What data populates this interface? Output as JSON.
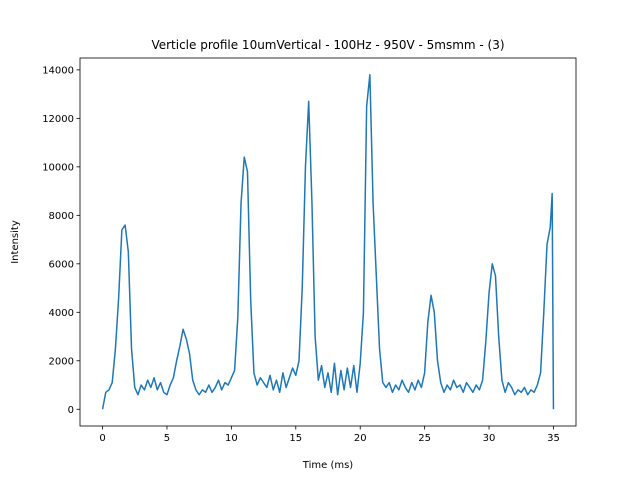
{
  "chart_data": {
    "type": "line",
    "title": "Verticle profile 10umVertical - 100Hz - 950V - 5msmm - (3)",
    "xlabel": "Time (ms)",
    "ylabel": "Intensity",
    "x": [
      0,
      0.25,
      0.5,
      0.75,
      1,
      1.25,
      1.5,
      1.75,
      2,
      2.25,
      2.5,
      2.75,
      3,
      3.25,
      3.5,
      3.75,
      4,
      4.25,
      4.5,
      4.75,
      5,
      5.25,
      5.5,
      5.75,
      6,
      6.25,
      6.5,
      6.75,
      7,
      7.25,
      7.5,
      7.75,
      8,
      8.25,
      8.5,
      8.75,
      9,
      9.25,
      9.5,
      9.75,
      10,
      10.25,
      10.5,
      10.75,
      11,
      11.25,
      11.5,
      11.75,
      12,
      12.25,
      12.5,
      12.75,
      13,
      13.25,
      13.5,
      13.75,
      14,
      14.25,
      14.5,
      14.75,
      15,
      15.25,
      15.5,
      15.75,
      16,
      16.25,
      16.5,
      16.75,
      17,
      17.25,
      17.5,
      17.75,
      18,
      18.25,
      18.5,
      18.75,
      19,
      19.25,
      19.5,
      19.75,
      20,
      20.25,
      20.5,
      20.75,
      21,
      21.25,
      21.5,
      21.75,
      22,
      22.25,
      22.5,
      22.75,
      23,
      23.25,
      23.5,
      23.75,
      24,
      24.25,
      24.5,
      24.75,
      25,
      25.25,
      25.5,
      25.75,
      26,
      26.25,
      26.5,
      26.75,
      27,
      27.25,
      27.5,
      27.75,
      28,
      28.25,
      28.5,
      28.75,
      29,
      29.25,
      29.5,
      29.75,
      30,
      30.25,
      30.5,
      30.75,
      31,
      31.25,
      31.5,
      31.75,
      32,
      32.25,
      32.5,
      32.75,
      33,
      33.25,
      33.5,
      33.75,
      34,
      34.25,
      34.5,
      34.75,
      34.9,
      35
    ],
    "series": [
      {
        "name": "Intensity",
        "color": "#1f77b4",
        "values": [
          0,
          700,
          800,
          1100,
          2500,
          4600,
          7400,
          7600,
          6500,
          2500,
          900,
          600,
          1000,
          800,
          1200,
          900,
          1300,
          800,
          1100,
          700,
          600,
          1000,
          1300,
          2000,
          2600,
          3300,
          2900,
          2300,
          1200,
          800,
          600,
          800,
          700,
          1000,
          700,
          900,
          1200,
          800,
          1100,
          1000,
          1300,
          1600,
          3800,
          8500,
          10400,
          9800,
          4500,
          1500,
          1000,
          1300,
          1100,
          900,
          1400,
          800,
          1200,
          700,
          1500,
          900,
          1300,
          1700,
          1400,
          2000,
          5000,
          10000,
          12700,
          8600,
          3000,
          1200,
          1800,
          900,
          1500,
          700,
          1900,
          600,
          1600,
          800,
          1700,
          900,
          1800,
          700,
          1900,
          4000,
          12500,
          13800,
          8500,
          5500,
          2500,
          1100,
          900,
          1100,
          700,
          1000,
          800,
          1200,
          900,
          700,
          1100,
          800,
          1200,
          900,
          1500,
          3600,
          4700,
          4000,
          2000,
          1100,
          700,
          1000,
          800,
          1200,
          900,
          1000,
          700,
          1100,
          900,
          700,
          1000,
          800,
          1200,
          2800,
          4800,
          6000,
          5500,
          3000,
          1200,
          700,
          1100,
          900,
          600,
          800,
          700,
          900,
          600,
          800,
          700,
          1000,
          1500,
          4000,
          6800,
          7500,
          8900,
          0
        ]
      }
    ],
    "xlim": [
      -1.75,
      36.75
    ],
    "ylim": [
      -690,
      14490
    ],
    "xticks": [
      0,
      5,
      10,
      15,
      20,
      25,
      30,
      35
    ],
    "yticks": [
      0,
      2000,
      4000,
      6000,
      8000,
      10000,
      12000,
      14000
    ],
    "grid": false
  }
}
